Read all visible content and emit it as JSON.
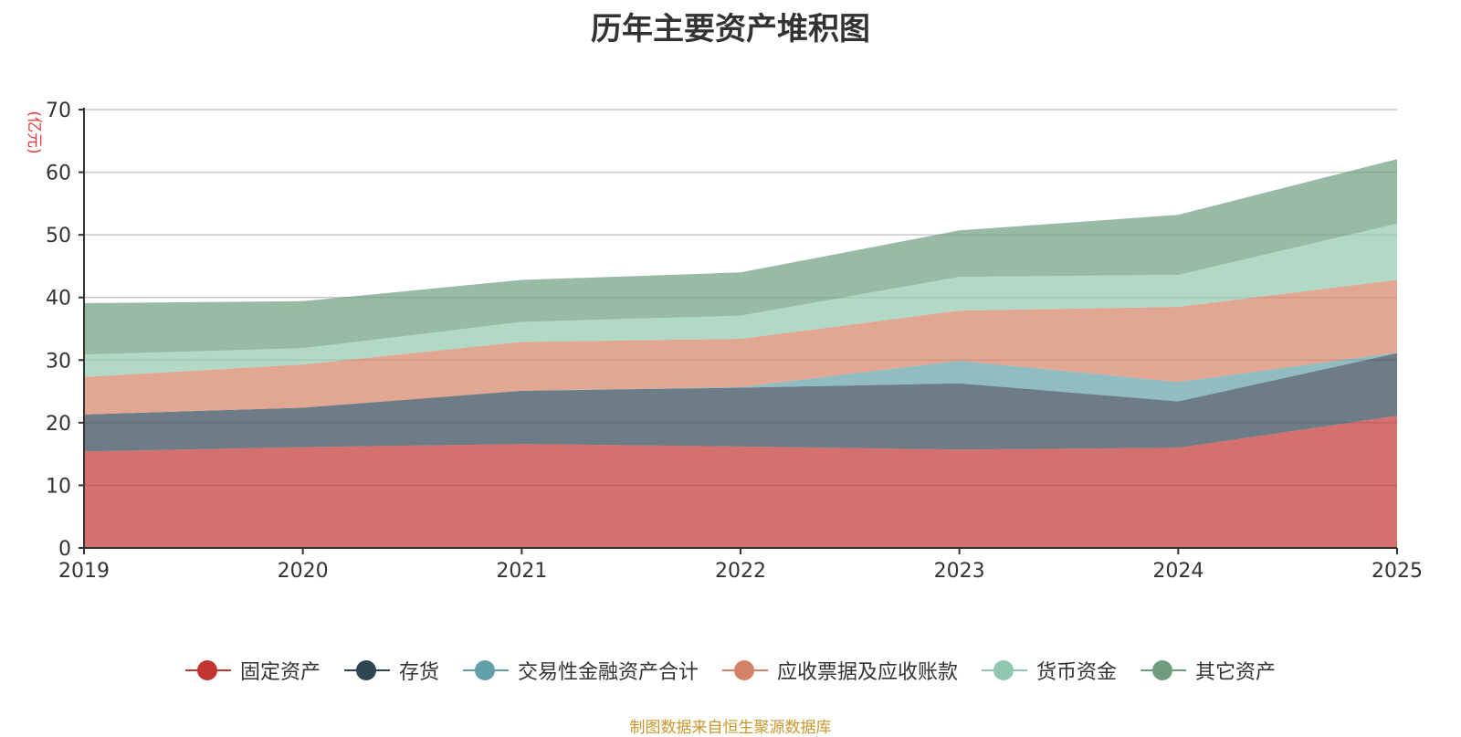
{
  "chart_data": {
    "type": "area",
    "stacked": true,
    "title": "历年主要资产堆积图",
    "ylabel": "(亿元)",
    "xlabel": "",
    "ylim": [
      0,
      70
    ],
    "yticks": [
      0,
      10,
      20,
      30,
      40,
      50,
      60,
      70
    ],
    "categories": [
      "2019",
      "2020",
      "2021",
      "2022",
      "2023",
      "2024",
      "2025"
    ],
    "grid": true,
    "legend_position": "bottom",
    "series": [
      {
        "name": "固定资产",
        "color": "#C23531",
        "values": [
          15.4,
          16.1,
          16.6,
          16.2,
          15.7,
          16.0,
          21.1
        ]
      },
      {
        "name": "存货",
        "color": "#2F4554",
        "values": [
          5.9,
          6.3,
          8.5,
          9.4,
          10.6,
          7.4,
          10.0
        ]
      },
      {
        "name": "交易性金融资产合计",
        "color": "#61A0A8",
        "values": [
          0.0,
          0.0,
          0.0,
          0.1,
          3.6,
          3.1,
          0.1
        ]
      },
      {
        "name": "应收票据及应收账款",
        "color": "#D48265",
        "values": [
          6.0,
          6.9,
          7.8,
          7.7,
          8.0,
          12.0,
          11.6
        ]
      },
      {
        "name": "货币资金",
        "color": "#91C7AE",
        "values": [
          3.6,
          2.6,
          3.2,
          3.7,
          5.4,
          5.1,
          9.0
        ]
      },
      {
        "name": "其它资产",
        "color": "#6E9C7F",
        "values": [
          8.2,
          7.5,
          6.7,
          6.9,
          7.4,
          9.6,
          10.3
        ]
      }
    ]
  },
  "footer": {
    "source": "制图数据来自恒生聚源数据库"
  }
}
